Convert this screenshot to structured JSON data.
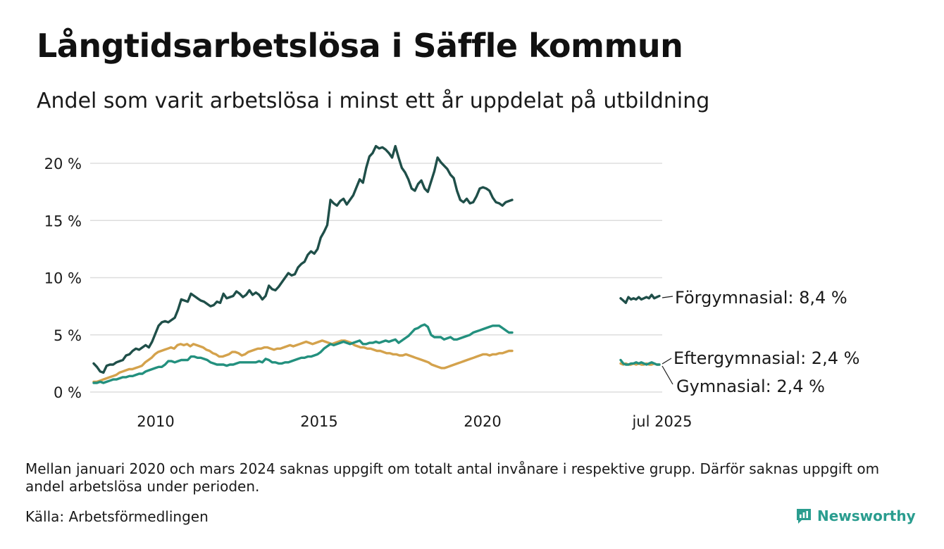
{
  "title": "Långtidsarbetslösa i Säffle kommun",
  "subtitle": "Andel som varit arbetslösa i minst ett år uppdelat på utbildning",
  "note": "Mellan januari 2020 och mars 2024 saknas uppgift om totalt antal invånare i respektive grupp. Därför saknas uppgift om andel arbetslösa under perioden.",
  "source": "Källa: Arbetsförmedlingen",
  "brand": "Newsworthy",
  "colors": {
    "forgymnasial": "#1f4f49",
    "eftergymnasial": "#23907e",
    "gymnasial": "#d4a24c",
    "grid": "#dddddd",
    "brand": "#2a9d8f"
  },
  "chart_data": {
    "type": "line",
    "title": "Långtidsarbetslösa i Säffle kommun",
    "subtitle": "Andel som varit arbetslösa i minst ett år uppdelat på utbildning",
    "ylabel": "",
    "ylim": [
      0,
      22
    ],
    "yticks": [
      {
        "value": 0,
        "label": "0 %"
      },
      {
        "value": 5,
        "label": "5 %"
      },
      {
        "value": 10,
        "label": "10 %"
      },
      {
        "value": 15,
        "label": "15 %"
      },
      {
        "value": 20,
        "label": "20 %"
      }
    ],
    "xticks": [
      "2010",
      "2015",
      "2020",
      "jul 2025"
    ],
    "grid": true,
    "legend": "inline-right",
    "gap": {
      "from": "2020-01",
      "to": "2024-03"
    },
    "periods": [
      "2008-03 – 2020-12",
      "2024-04 – 2025-07"
    ],
    "series": [
      {
        "name": "Förgymnasial",
        "label": "Förgymnasial: 8,4 %",
        "color_key": "forgymnasial",
        "values": [
          2.5,
          2.2,
          1.8,
          1.7,
          2.3,
          2.4,
          2.4,
          2.6,
          2.7,
          2.8,
          3.2,
          3.3,
          3.6,
          3.8,
          3.7,
          3.9,
          4.1,
          3.9,
          4.4,
          5.1,
          5.8,
          6.1,
          6.2,
          6.1,
          6.3,
          6.5,
          7.2,
          8.1,
          8.0,
          7.9,
          8.6,
          8.4,
          8.2,
          8.0,
          7.9,
          7.7,
          7.5,
          7.6,
          7.9,
          7.8,
          8.6,
          8.2,
          8.3,
          8.4,
          8.8,
          8.6,
          8.3,
          8.5,
          8.9,
          8.5,
          8.7,
          8.5,
          8.1,
          8.4,
          9.3,
          9.0,
          8.9,
          9.2,
          9.6,
          10.0,
          10.4,
          10.2,
          10.3,
          10.9,
          11.2,
          11.4,
          12.0,
          12.3,
          12.1,
          12.5,
          13.5,
          14.0,
          14.6,
          16.8,
          16.5,
          16.3,
          16.7,
          16.9,
          16.4,
          16.8,
          17.2,
          17.9,
          18.6,
          18.3,
          19.6,
          20.6,
          20.9,
          21.5,
          21.3,
          21.4,
          21.2,
          20.9,
          20.5,
          21.5,
          20.5,
          19.6,
          19.2,
          18.6,
          17.8,
          17.6,
          18.2,
          18.5,
          17.8,
          17.5,
          18.4,
          19.3,
          20.5,
          20.1,
          19.8,
          19.5,
          19.0,
          18.7,
          17.6,
          16.8,
          16.6,
          16.9,
          16.5,
          16.6,
          17.1,
          17.8,
          17.9,
          17.8,
          17.6,
          17.0,
          16.6,
          16.5,
          16.3,
          16.6,
          16.7,
          16.8
        ],
        "values_2024_2025": [
          8.2,
          8.0,
          7.8,
          8.3,
          8.1,
          8.2,
          8.1,
          8.3,
          8.1,
          8.2,
          8.3,
          8.2,
          8.5,
          8.2,
          8.3,
          8.4
        ]
      },
      {
        "name": "Eftergymnasial",
        "label": "Eftergymnasial: 2,4 %",
        "color_key": "eftergymnasial",
        "values": [
          0.8,
          0.8,
          0.9,
          0.8,
          0.9,
          1.0,
          1.1,
          1.1,
          1.2,
          1.3,
          1.3,
          1.4,
          1.4,
          1.5,
          1.6,
          1.6,
          1.8,
          1.9,
          2.0,
          2.1,
          2.2,
          2.2,
          2.4,
          2.7,
          2.7,
          2.6,
          2.7,
          2.8,
          2.8,
          2.8,
          3.1,
          3.1,
          3.0,
          3.0,
          2.9,
          2.8,
          2.6,
          2.5,
          2.4,
          2.4,
          2.4,
          2.3,
          2.4,
          2.4,
          2.5,
          2.6,
          2.6,
          2.6,
          2.6,
          2.6,
          2.6,
          2.7,
          2.6,
          2.9,
          2.8,
          2.6,
          2.6,
          2.5,
          2.5,
          2.6,
          2.6,
          2.7,
          2.8,
          2.9,
          3.0,
          3.0,
          3.1,
          3.1,
          3.2,
          3.3,
          3.5,
          3.8,
          4.0,
          4.2,
          4.1,
          4.2,
          4.3,
          4.4,
          4.3,
          4.2,
          4.3,
          4.4,
          4.5,
          4.2,
          4.2,
          4.3,
          4.3,
          4.4,
          4.3,
          4.4,
          4.5,
          4.4,
          4.5,
          4.6,
          4.3,
          4.5,
          4.7,
          4.9,
          5.2,
          5.5,
          5.6,
          5.8,
          5.9,
          5.7,
          5.0,
          4.8,
          4.8,
          4.8,
          4.6,
          4.7,
          4.8,
          4.6,
          4.6,
          4.7,
          4.8,
          4.9,
          5.0,
          5.2,
          5.3,
          5.4,
          5.5,
          5.6,
          5.7,
          5.8,
          5.8,
          5.8,
          5.6,
          5.4,
          5.2,
          5.2
        ],
        "values_2024_2025": [
          2.8,
          2.5,
          2.4,
          2.4,
          2.5,
          2.5,
          2.6,
          2.5,
          2.6,
          2.5,
          2.4,
          2.5,
          2.6,
          2.5,
          2.4,
          2.4
        ]
      },
      {
        "name": "Gymnasial",
        "label": "Gymnasial: 2,4 %",
        "color_key": "gymnasial",
        "values": [
          0.9,
          0.9,
          1.0,
          1.1,
          1.2,
          1.3,
          1.4,
          1.5,
          1.7,
          1.8,
          1.9,
          2.0,
          2.0,
          2.1,
          2.2,
          2.3,
          2.6,
          2.8,
          3.0,
          3.3,
          3.5,
          3.6,
          3.7,
          3.8,
          3.9,
          3.8,
          4.1,
          4.2,
          4.1,
          4.2,
          4.0,
          4.2,
          4.1,
          4.0,
          3.9,
          3.7,
          3.6,
          3.4,
          3.3,
          3.1,
          3.1,
          3.2,
          3.3,
          3.5,
          3.5,
          3.4,
          3.2,
          3.3,
          3.5,
          3.6,
          3.7,
          3.8,
          3.8,
          3.9,
          3.9,
          3.8,
          3.7,
          3.8,
          3.8,
          3.9,
          4.0,
          4.1,
          4.0,
          4.1,
          4.2,
          4.3,
          4.4,
          4.3,
          4.2,
          4.3,
          4.4,
          4.5,
          4.4,
          4.3,
          4.2,
          4.3,
          4.4,
          4.5,
          4.5,
          4.4,
          4.3,
          4.1,
          4.0,
          3.9,
          3.9,
          3.8,
          3.8,
          3.7,
          3.6,
          3.6,
          3.5,
          3.4,
          3.4,
          3.3,
          3.3,
          3.2,
          3.2,
          3.3,
          3.2,
          3.1,
          3.0,
          2.9,
          2.8,
          2.7,
          2.6,
          2.4,
          2.3,
          2.2,
          2.1,
          2.1,
          2.2,
          2.3,
          2.4,
          2.5,
          2.6,
          2.7,
          2.8,
          2.9,
          3.0,
          3.1,
          3.2,
          3.3,
          3.3,
          3.2,
          3.3,
          3.3,
          3.4,
          3.4,
          3.5,
          3.6,
          3.6
        ],
        "values_2024_2025": [
          2.5,
          2.4,
          2.5,
          2.4,
          2.4,
          2.5,
          2.4,
          2.5,
          2.4,
          2.4,
          2.5,
          2.4,
          2.4,
          2.5,
          2.4,
          2.4
        ]
      }
    ]
  }
}
